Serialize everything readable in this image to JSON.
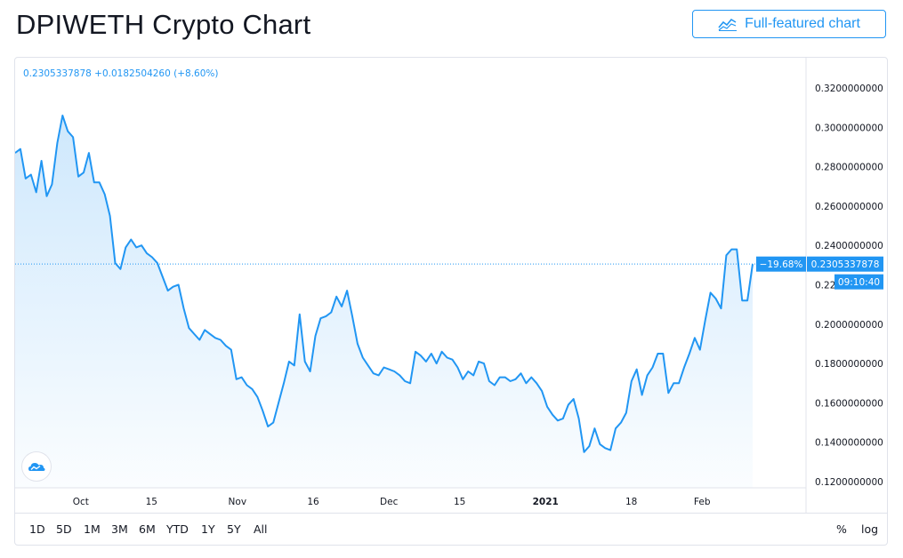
{
  "page": {
    "title": "DPIWETH Crypto Chart"
  },
  "toolbar": {
    "full_chart_label": "Full-featured chart",
    "full_chart_icon": "chart-icon"
  },
  "legend": {
    "price": "0.2305337878",
    "change": "+0.0182504260",
    "change_pct": "(+8.60%)"
  },
  "price_tag": {
    "pct": "−19.68%",
    "value": "0.2305337878",
    "countdown": "09:10:40"
  },
  "ranges": [
    "1D",
    "5D",
    "1M",
    "3M",
    "6M",
    "YTD",
    "1Y",
    "5Y",
    "All"
  ],
  "right_controls": {
    "percent": "%",
    "log": "log"
  },
  "colors": {
    "line": "#2196f3",
    "text": "#131722",
    "axis_text": "#131722",
    "grid_border": "#e0e3eb"
  },
  "chart_data": {
    "type": "area",
    "title": "DPIWETH Crypto Chart",
    "xlabel": "",
    "ylabel": "",
    "ylim": [
      0.12,
      0.33
    ],
    "y_ticks": [
      "0.3200000000",
      "0.3000000000",
      "0.2800000000",
      "0.2600000000",
      "0.2400000000",
      "0.22",
      "0.2000000000",
      "0.1800000000",
      "0.1600000000",
      "0.1400000000",
      "0.1200000000"
    ],
    "y_tick_values": [
      0.32,
      0.3,
      0.28,
      0.26,
      0.24,
      0.22,
      0.2,
      0.18,
      0.16,
      0.14,
      0.12
    ],
    "x_ticks": [
      {
        "label": "Oct",
        "day": 13,
        "bold": false
      },
      {
        "label": "15",
        "day": 27,
        "bold": false
      },
      {
        "label": "Nov",
        "day": 44,
        "bold": false
      },
      {
        "label": "16",
        "day": 59,
        "bold": false
      },
      {
        "label": "Dec",
        "day": 74,
        "bold": false
      },
      {
        "label": "15",
        "day": 88,
        "bold": false
      },
      {
        "label": "2021",
        "day": 105,
        "bold": true
      },
      {
        "label": "18",
        "day": 122,
        "bold": false
      },
      {
        "label": "Feb",
        "day": 136,
        "bold": false
      }
    ],
    "x_range_days": [
      0,
      146
    ],
    "last_price": 0.2305337878,
    "grid": false,
    "legend": "none",
    "series": [
      {
        "values": [
          0.287,
          0.289,
          0.274,
          0.276,
          0.267,
          0.283,
          0.265,
          0.271,
          0.292,
          0.306,
          0.298,
          0.295,
          0.275,
          0.277,
          0.287,
          0.272,
          0.272,
          0.266,
          0.255,
          0.231,
          0.228,
          0.239,
          0.243,
          0.239,
          0.24,
          0.236,
          0.234,
          0.231,
          0.224,
          0.217,
          0.219,
          0.22,
          0.208,
          0.198,
          0.195,
          0.192,
          0.197,
          0.195,
          0.193,
          0.192,
          0.189,
          0.187,
          0.172,
          0.173,
          0.169,
          0.167,
          0.163,
          0.156,
          0.148,
          0.15,
          0.16,
          0.17,
          0.181,
          0.179,
          0.205,
          0.181,
          0.176,
          0.194,
          0.203,
          0.204,
          0.206,
          0.214,
          0.209,
          0.217,
          0.204,
          0.19,
          0.183,
          0.179,
          0.175,
          0.174,
          0.178,
          0.177,
          0.176,
          0.174,
          0.171,
          0.17,
          0.186,
          0.184,
          0.181,
          0.185,
          0.18,
          0.186,
          0.183,
          0.182,
          0.178,
          0.172,
          0.176,
          0.174,
          0.181,
          0.18,
          0.171,
          0.169,
          0.173,
          0.173,
          0.171,
          0.172,
          0.175,
          0.17,
          0.173,
          0.17,
          0.166,
          0.158,
          0.154,
          0.151,
          0.152,
          0.159,
          0.162,
          0.152,
          0.135,
          0.138,
          0.147,
          0.139,
          0.137,
          0.136,
          0.147,
          0.15,
          0.155,
          0.171,
          0.177,
          0.164,
          0.174,
          0.178,
          0.185,
          0.185,
          0.165,
          0.17,
          0.17,
          0.178,
          0.185,
          0.193,
          0.187,
          0.202,
          0.216,
          0.213,
          0.208,
          0.235,
          0.238,
          0.238,
          0.212,
          0.212,
          0.2305
        ]
      }
    ]
  }
}
